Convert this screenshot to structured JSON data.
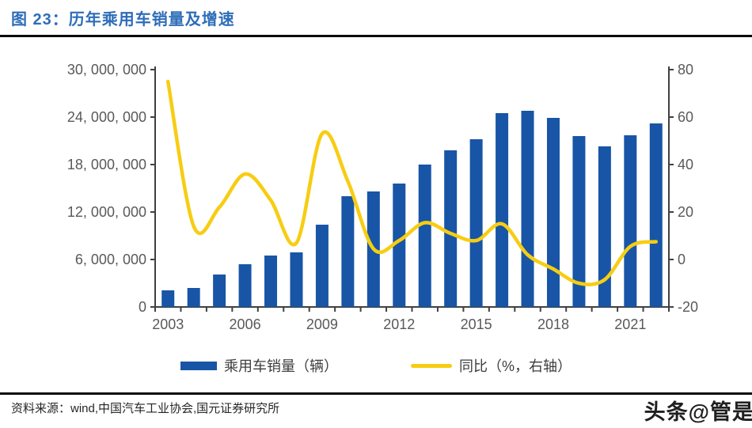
{
  "title": "图 23：历年乘用车销量及增速",
  "source_text": "资料来源：wind,中国汽车工业协会,国元证券研究所",
  "watermark": "头条@管是",
  "colors": {
    "bar": "#1855A6",
    "line": "#F7CD13",
    "title": "#2E6DB8",
    "axis": "#404040",
    "tick_label": "#595959",
    "rule": "#0a0a0f"
  },
  "legend": {
    "items": [
      {
        "label": "乘用车销量（辆）",
        "type": "bar"
      },
      {
        "label": "同比（%，右轴）",
        "type": "line"
      }
    ]
  },
  "chart_data": {
    "type": "bar",
    "subtype": "bar+line dual axis",
    "title": "历年乘用车销量及增速",
    "categories": [
      2003,
      2004,
      2005,
      2006,
      2007,
      2008,
      2009,
      2010,
      2011,
      2012,
      2013,
      2014,
      2015,
      2016,
      2017,
      2018,
      2019,
      2020,
      2021,
      2022
    ],
    "series": [
      {
        "name": "乘用车销量（辆）",
        "type": "bar",
        "axis": "left",
        "values": [
          2100000,
          2400000,
          4100000,
          5400000,
          6500000,
          6900000,
          10400000,
          14000000,
          14600000,
          15600000,
          18000000,
          19800000,
          21200000,
          24500000,
          24800000,
          23900000,
          21600000,
          20300000,
          21700000,
          23200000
        ]
      },
      {
        "name": "同比（%，右轴）",
        "type": "line",
        "axis": "right",
        "values": [
          75,
          14,
          22,
          36,
          25,
          7,
          53,
          33,
          4.5,
          8,
          15.5,
          11,
          8,
          15,
          2,
          -4,
          -10,
          -8.5,
          5.5,
          7.5
        ]
      }
    ],
    "left_axis": {
      "min": 0,
      "max": 30000000,
      "tick_values": [
        0,
        6000000,
        12000000,
        18000000,
        24000000,
        30000000
      ],
      "tick_labels": [
        "0",
        "6, 000, 000",
        "12, 000, 000",
        "18, 000, 000",
        "24, 000, 000",
        "30, 000, 000"
      ]
    },
    "right_axis": {
      "min": -20,
      "max": 80,
      "tick_values": [
        -20,
        0,
        20,
        40,
        60,
        80
      ],
      "tick_labels": [
        "-20",
        "0",
        "20",
        "40",
        "60",
        "80"
      ]
    },
    "x_tick_labels": [
      "2003",
      "2006",
      "2009",
      "2012",
      "2015",
      "2018",
      "2021"
    ],
    "x_tick_years": [
      2003,
      2006,
      2009,
      2012,
      2015,
      2018,
      2021
    ],
    "grid": false,
    "legend_position": "bottom"
  }
}
